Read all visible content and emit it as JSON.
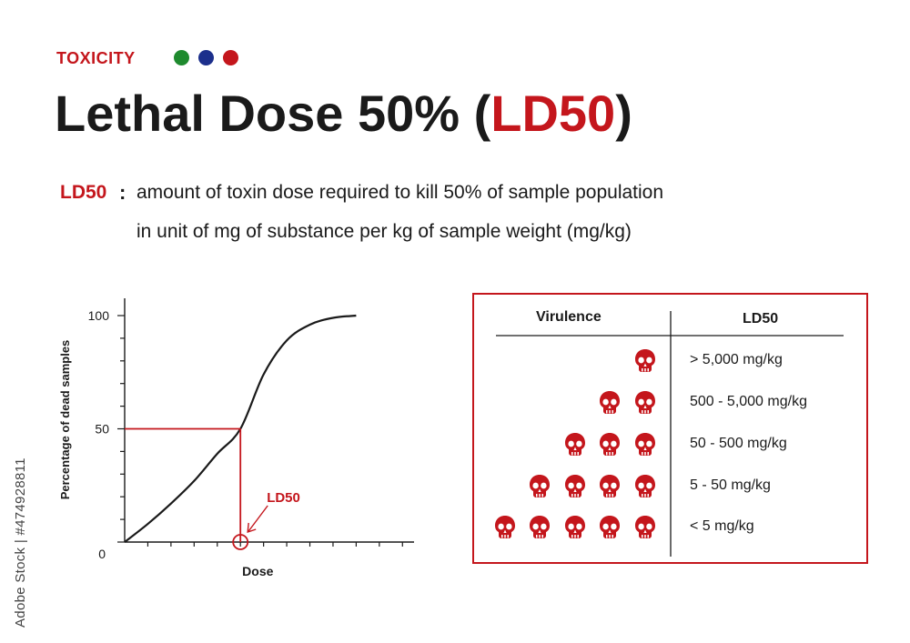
{
  "header": {
    "label": "TOXICITY",
    "dots": [
      "#1e8a2e",
      "#1c2f8c",
      "#c4161c"
    ],
    "title_main": "Lethal Dose 50% (",
    "title_highlight": "LD50",
    "title_end": ")"
  },
  "definition": {
    "term": "LD50",
    "colon": ":",
    "line1": "amount of toxin dose required to kill 50% of sample population",
    "line2": "in unit of mg of substance per kg of sample weight (mg/kg)"
  },
  "chart_data": {
    "type": "line",
    "title": "",
    "xlabel": "Dose",
    "ylabel": "Percentage of dead samples",
    "yticks": [
      "100",
      "50",
      "0"
    ],
    "ylim": [
      0,
      100
    ],
    "annotation": "LD50",
    "series": [
      {
        "x": [
          0,
          1,
          2,
          3,
          4,
          5,
          6,
          7,
          8,
          9,
          10
        ],
        "values": [
          0,
          8,
          17,
          27,
          39,
          50,
          74,
          89,
          96,
          99,
          100
        ]
      }
    ],
    "ld50_x": 5,
    "ld50_y": 50
  },
  "table": {
    "headers": [
      "Virulence",
      "LD50"
    ],
    "rows": [
      {
        "skulls": 1,
        "ld50": "> 5,000 mg/kg"
      },
      {
        "skulls": 2,
        "ld50": "500 - 5,000 mg/kg"
      },
      {
        "skulls": 3,
        "ld50": "50 - 500 mg/kg"
      },
      {
        "skulls": 4,
        "ld50": "5 - 50 mg/kg"
      },
      {
        "skulls": 5,
        "ld50": "< 5 mg/kg"
      }
    ],
    "skull_color": "#c4161c",
    "border_color": "#c4161c"
  },
  "watermark": {
    "text": "Adobe Stock | #474928811"
  }
}
